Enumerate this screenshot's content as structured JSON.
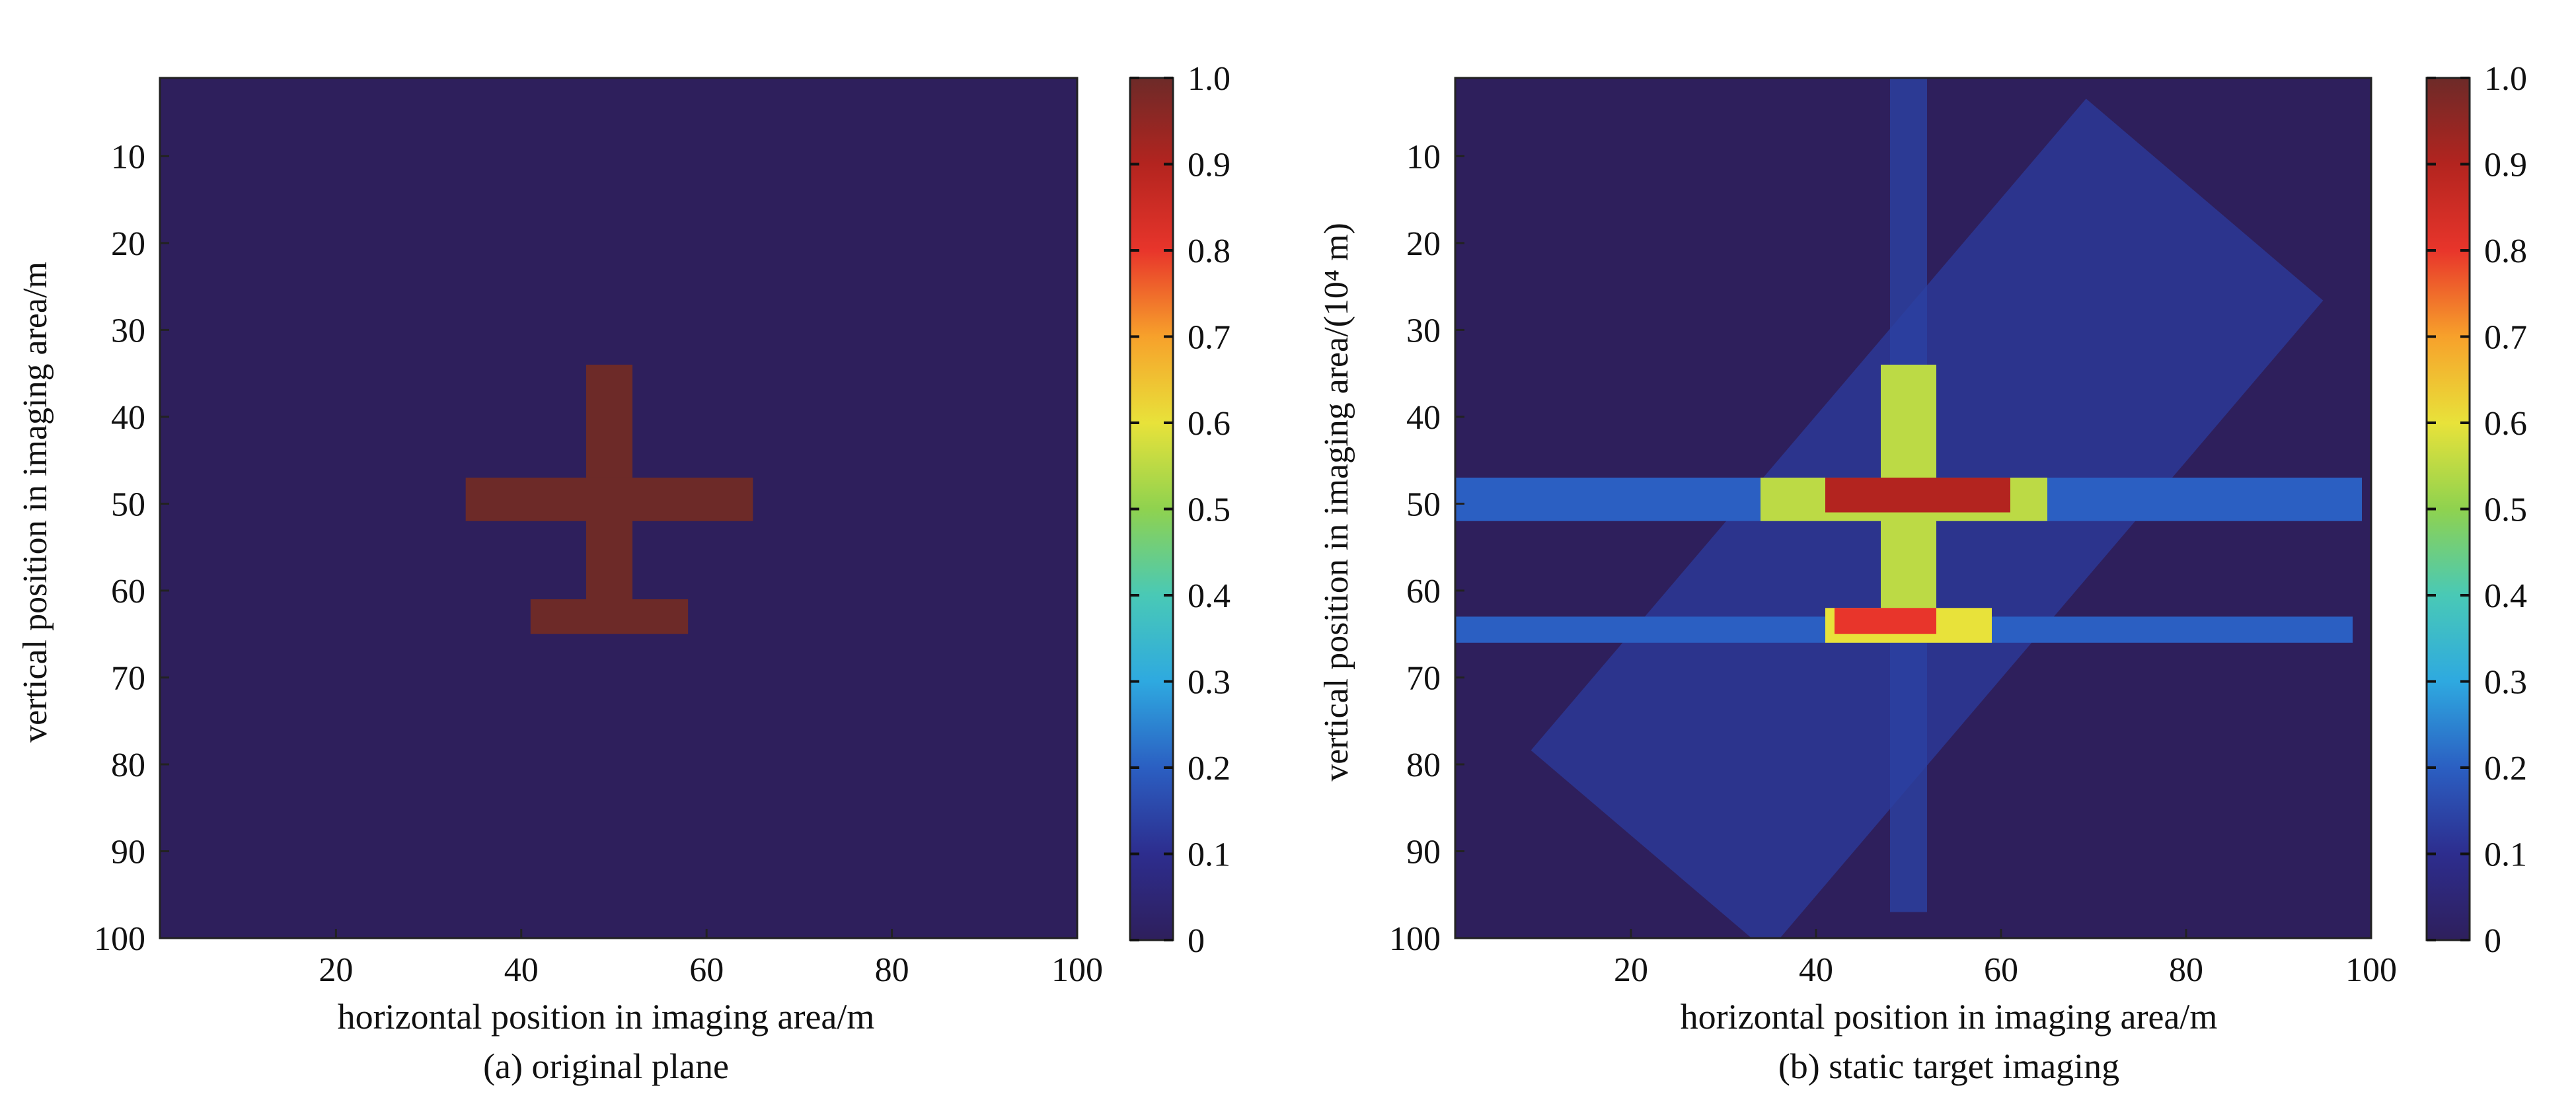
{
  "colormap": {
    "name": "jet",
    "stops": [
      "#2e1f5c",
      "#2d2d8e",
      "#2b5fc2",
      "#2ea9e0",
      "#49c9b6",
      "#8fd24f",
      "#e8e23a",
      "#f7a12b",
      "#e8352b",
      "#b3241f",
      "#6d2a28"
    ]
  },
  "chart_data": [
    {
      "type": "heatmap",
      "title": "",
      "caption": "(a) original plane",
      "xlabel": "horizontal position in imaging area/m",
      "ylabel": "vertical position in imaging area/m",
      "xlim": [
        1,
        100
      ],
      "ylim": [
        1,
        100
      ],
      "xticks": [
        20,
        40,
        60,
        80,
        100
      ],
      "yticks": [
        10,
        20,
        30,
        40,
        50,
        60,
        70,
        80,
        90,
        100
      ],
      "colorbar": {
        "range": [
          0,
          1.0
        ],
        "ticks": [
          "0",
          "0.1",
          "0.2",
          "0.3",
          "0.4",
          "0.5",
          "0.6",
          "0.7",
          "0.8",
          "0.9",
          "1.0"
        ]
      },
      "background_value": 0.0,
      "target": {
        "value": 1.0,
        "shapes": [
          {
            "name": "fuselage",
            "x": [
              47,
              52
            ],
            "y": [
              34,
              64
            ]
          },
          {
            "name": "main-wing",
            "x": [
              34,
              65
            ],
            "y": [
              47,
              52
            ]
          },
          {
            "name": "tail-plane",
            "x": [
              41,
              58
            ],
            "y": [
              61,
              65
            ]
          }
        ]
      }
    },
    {
      "type": "heatmap",
      "title": "",
      "caption": "(b) static target imaging",
      "xlabel": "horizontal position in imaging area/m",
      "ylabel": "vertical position in imaging area/(10⁴ m)",
      "xlim": [
        1,
        100
      ],
      "ylim": [
        1,
        100
      ],
      "xticks": [
        20,
        40,
        60,
        80,
        100
      ],
      "yticks": [
        10,
        20,
        30,
        40,
        50,
        60,
        70,
        80,
        90,
        100
      ],
      "colorbar": {
        "range": [
          0,
          1.0
        ],
        "ticks": [
          "0",
          "0.1",
          "0.2",
          "0.3",
          "0.4",
          "0.5",
          "0.6",
          "0.7",
          "0.8",
          "0.9",
          "1.0"
        ]
      },
      "background_value": 0.0,
      "features": {
        "diagonal_band": {
          "from": [
            22,
            90
          ],
          "to": [
            82,
            15
          ],
          "halfwidth": 17,
          "value": 0.13
        },
        "horizontal_streaks": [
          {
            "y": [
              47,
              52
            ],
            "x": [
              1,
              99
            ],
            "value": 0.2
          },
          {
            "y": [
              63,
              66
            ],
            "x": [
              1,
              98
            ],
            "value": 0.2
          }
        ],
        "vertical_streak": {
          "x": [
            48,
            52
          ],
          "y": [
            1,
            97
          ],
          "value": 0.14
        },
        "fuselage": {
          "x": [
            47,
            53
          ],
          "y": [
            34,
            64
          ],
          "value": 0.55
        },
        "main_wing": {
          "x": [
            34,
            65
          ],
          "y": [
            47,
            52
          ],
          "value": 0.55
        },
        "main_wing_core": {
          "x": [
            41,
            61
          ],
          "y": [
            47,
            51
          ],
          "value": 0.9
        },
        "tail_plane": {
          "x": [
            41,
            59
          ],
          "y": [
            62,
            66
          ],
          "value": 0.6
        },
        "tail_core": {
          "x": [
            42,
            53
          ],
          "y": [
            62,
            65
          ],
          "value": 0.8
        }
      }
    }
  ]
}
